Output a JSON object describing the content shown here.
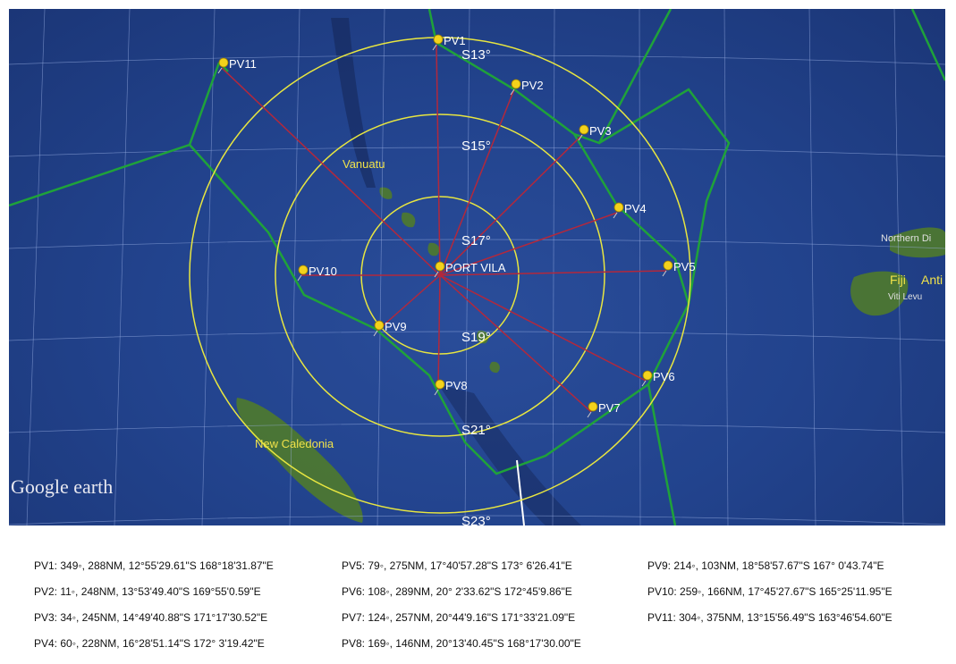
{
  "map": {
    "center_label": "PORT VILA",
    "waypoint_labels": [
      "PV1",
      "PV2",
      "PV3",
      "PV4",
      "PV5",
      "PV6",
      "PV7",
      "PV8",
      "PV9",
      "PV10",
      "PV11"
    ],
    "latitude_labels": [
      "S13°",
      "S15°",
      "S17°",
      "S19°",
      "S21°",
      "S23°"
    ],
    "place_labels": {
      "vanuatu": "Vanuatu",
      "new_caledonia": "New Caledonia",
      "fiji": "Fiji",
      "northern": "Northern Di",
      "anti": "Anti",
      "viti_levu": "Viti Levu"
    },
    "logo": "Google earth",
    "colors": {
      "rings": "#e8e640",
      "radials": "#b3283c",
      "boundary": "#1fa23a",
      "pin": "#f3d21c",
      "ocean": "#22438d",
      "land": "#4f7a2c"
    }
  },
  "waypoints": [
    "PV1: 349◦, 288NM, 12°55'29.61\"S 168°18'31.87\"E",
    "PV2: 11◦, 248NM, 13°53'49.40\"S 169°55'0.59\"E",
    "PV3: 34◦, 245NM, 14°49'40.88\"S 171°17'30.52\"E",
    "PV4: 60◦, 228NM, 16°28'51.14\"S 172° 3'19.42\"E",
    "PV5: 79◦, 275NM, 17°40'57.28\"S 173° 6'26.41\"E",
    "PV6: 108◦, 289NM, 20° 2'33.62\"S 172°45'9.86\"E",
    "PV7: 124◦, 257NM, 20°44'9.16\"S 171°33'21.09\"E",
    "PV8: 169◦, 146NM, 20°13'40.45\"S 168°17'30.00\"E",
    "PV9: 214◦, 103NM, 18°58'57.67\"S 167° 0'43.74\"E",
    "PV10: 259◦, 166NM, 17°45'27.67\"S 165°25'11.95\"E",
    "PV11: 304◦, 375NM, 13°15'56.49\"S 163°46'54.60\"E"
  ]
}
